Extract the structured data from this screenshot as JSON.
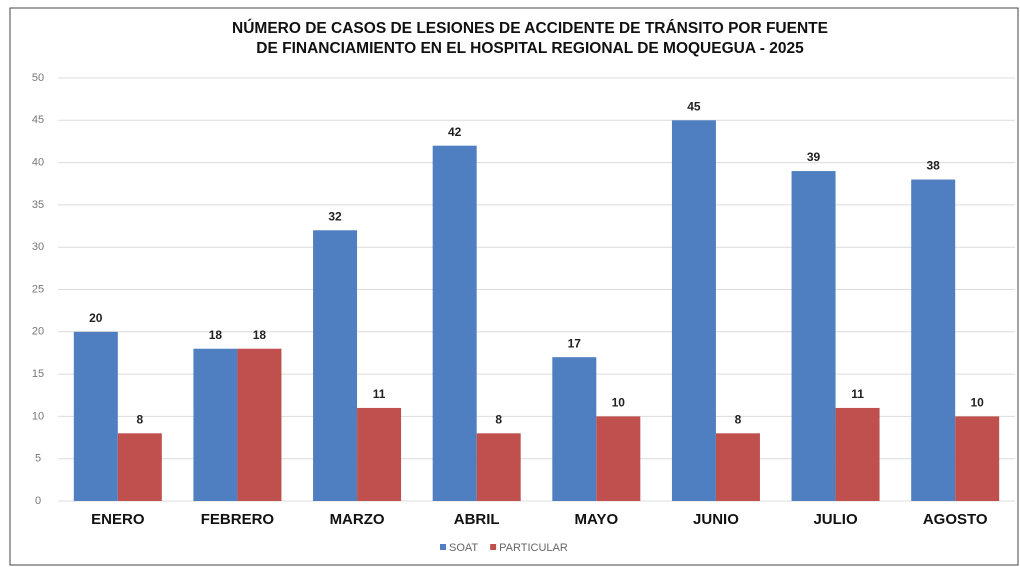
{
  "chart_data": {
    "type": "bar",
    "title": [
      "NÚMERO DE CASOS DE LESIONES DE ACCIDENTE DE TRÁNSITO POR FUENTE",
      "DE FINANCIAMIENTO EN EL HOSPITAL REGIONAL DE MOQUEGUA - 2025"
    ],
    "categories": [
      "ENERO",
      "FEBRERO",
      "MARZO",
      "ABRIL",
      "MAYO",
      "JUNIO",
      "JULIO",
      "AGOSTO"
    ],
    "series": [
      {
        "name": "SOAT",
        "color": "#4f7fc0",
        "values": [
          20,
          18,
          32,
          42,
          17,
          45,
          39,
          38
        ]
      },
      {
        "name": "PARTICULAR",
        "color": "#c0504d",
        "values": [
          8,
          18,
          11,
          8,
          10,
          8,
          11,
          10
        ]
      }
    ],
    "ylim": [
      0,
      50
    ],
    "yticks": [
      0,
      5,
      10,
      15,
      20,
      25,
      30,
      35,
      40,
      45,
      50
    ],
    "grid": true,
    "legend": "bottom"
  }
}
